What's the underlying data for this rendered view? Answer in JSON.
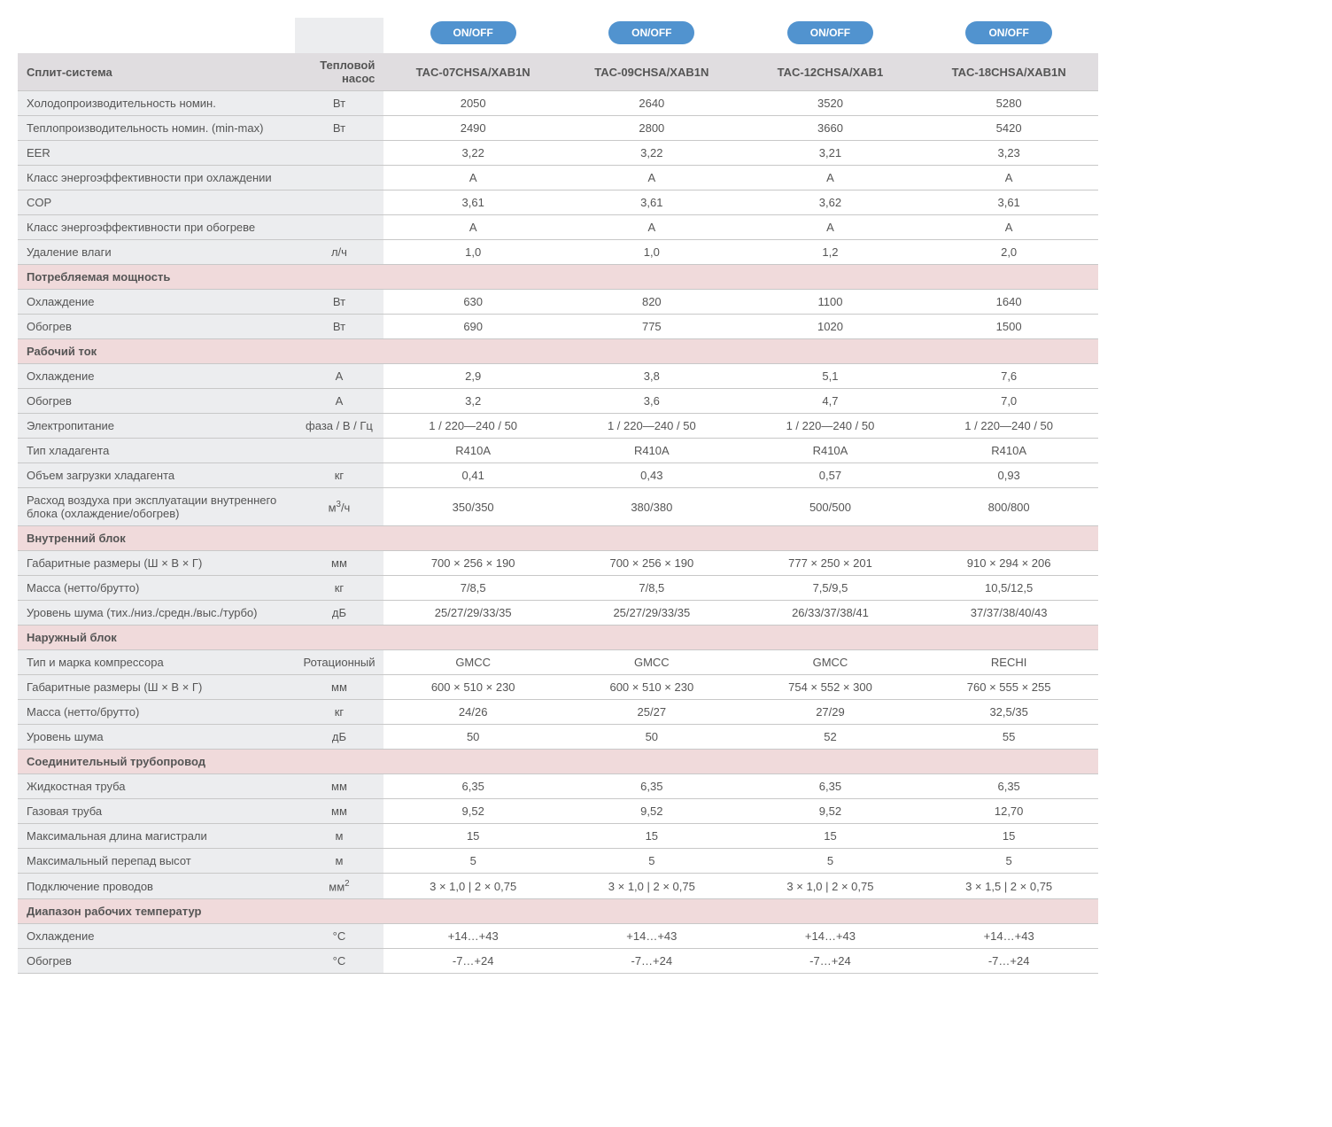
{
  "colors": {
    "pill_bg": "#5193cf",
    "pill_fg": "#ffffff",
    "header_bg": "#e0dde0",
    "label_bg": "#ecedef",
    "section_bg": "#f0dadb",
    "border": "#c8c8c8",
    "text": "#555555"
  },
  "pills": [
    "ON/OFF",
    "ON/OFF",
    "ON/OFF",
    "ON/OFF"
  ],
  "header": {
    "label": "Сплит-система",
    "unit": "Тепловой насос",
    "models": [
      "TAC-07CHSA/XAB1N",
      "TAC-09CHSA/XAB1N",
      "TAC-12CHSA/XAB1",
      "TAC-18CHSA/XAB1N"
    ]
  },
  "rows": [
    {
      "t": "data",
      "label": "Холодопроизводительность номин.",
      "unit": "Вт",
      "v": [
        "2050",
        "2640",
        "3520",
        "5280"
      ]
    },
    {
      "t": "data",
      "label": "Теплопроизводительность номин. (min-max)",
      "unit": "Вт",
      "v": [
        "2490",
        "2800",
        "3660",
        "5420"
      ]
    },
    {
      "t": "data",
      "label": "EER",
      "unit": "",
      "v": [
        "3,22",
        "3,22",
        "3,21",
        "3,23"
      ]
    },
    {
      "t": "data",
      "label": "Класс энергоэффективности при охлаждении",
      "unit": "",
      "v": [
        "A",
        "A",
        "A",
        "A"
      ]
    },
    {
      "t": "data",
      "label": "COP",
      "unit": "",
      "v": [
        "3,61",
        "3,61",
        "3,62",
        "3,61"
      ]
    },
    {
      "t": "data",
      "label": "Класс энергоэффективности при обогреве",
      "unit": "",
      "v": [
        "A",
        "A",
        "A",
        "A"
      ]
    },
    {
      "t": "data",
      "label": "Удаление влаги",
      "unit": "л/ч",
      "v": [
        "1,0",
        "1,0",
        "1,2",
        "2,0"
      ]
    },
    {
      "t": "section",
      "label": "Потребляемая мощность"
    },
    {
      "t": "data",
      "label": "Охлаждение",
      "unit": "Вт",
      "v": [
        "630",
        "820",
        "1100",
        "1640"
      ]
    },
    {
      "t": "data",
      "label": "Обогрев",
      "unit": "Вт",
      "v": [
        "690",
        "775",
        "1020",
        "1500"
      ]
    },
    {
      "t": "section",
      "label": "Рабочий ток"
    },
    {
      "t": "data",
      "label": "Охлаждение",
      "unit": "A",
      "v": [
        "2,9",
        "3,8",
        "5,1",
        "7,6"
      ]
    },
    {
      "t": "data",
      "label": "Обогрев",
      "unit": "A",
      "v": [
        "3,2",
        "3,6",
        "4,7",
        "7,0"
      ]
    },
    {
      "t": "data",
      "label": "Электропитание",
      "unit": "фаза / В / Гц",
      "v": [
        "1 / 220—240 / 50",
        "1 / 220—240 / 50",
        "1 / 220—240 / 50",
        "1 / 220—240 / 50"
      ]
    },
    {
      "t": "data",
      "label": "Тип хладагента",
      "unit": "",
      "v": [
        "R410A",
        "R410A",
        "R410A",
        "R410A"
      ]
    },
    {
      "t": "data",
      "label": "Объем загрузки хладагента",
      "unit": "кг",
      "v": [
        "0,41",
        "0,43",
        "0,57",
        "0,93"
      ]
    },
    {
      "t": "data",
      "label": "Расход воздуха при эксплуатации внутреннего блока (охлаждение/обогрев)",
      "unit_html": "м<sup>3</sup>/ч",
      "v": [
        "350/350",
        "380/380",
        "500/500",
        "800/800"
      ]
    },
    {
      "t": "section",
      "label": "Внутренний блок"
    },
    {
      "t": "data",
      "label": "Габаритные размеры (Ш × В × Г)",
      "unit": "мм",
      "v": [
        "700 × 256 × 190",
        "700 × 256 × 190",
        "777 × 250 × 201",
        "910 × 294 × 206"
      ]
    },
    {
      "t": "data",
      "label": "Масса (нетто/брутто)",
      "unit": "кг",
      "v": [
        "7/8,5",
        "7/8,5",
        "7,5/9,5",
        "10,5/12,5"
      ]
    },
    {
      "t": "data",
      "label": "Уровень шума (тих./низ./средн./выс./турбо)",
      "unit": "дБ",
      "v": [
        "25/27/29/33/35",
        "25/27/29/33/35",
        "26/33/37/38/41",
        "37/37/38/40/43"
      ]
    },
    {
      "t": "section",
      "label": "Наружный блок"
    },
    {
      "t": "data",
      "label": "Тип и марка компрессора",
      "unit": "Ротационный",
      "v": [
        "GMCC",
        "GMCC",
        "GMCC",
        "RECHI"
      ]
    },
    {
      "t": "data",
      "label": "Габаритные размеры (Ш × В × Г)",
      "unit": "мм",
      "v": [
        "600 × 510 × 230",
        "600 × 510 × 230",
        "754 × 552 × 300",
        "760 × 555 × 255"
      ]
    },
    {
      "t": "data",
      "label": "Масса (нетто/брутто)",
      "unit": "кг",
      "v": [
        "24/26",
        "25/27",
        "27/29",
        "32,5/35"
      ]
    },
    {
      "t": "data",
      "label": "Уровень шума",
      "unit": "дБ",
      "v": [
        "50",
        "50",
        "52",
        "55"
      ]
    },
    {
      "t": "section",
      "label": "Cоединительный трубопровод"
    },
    {
      "t": "data",
      "label": "Жидкостная труба",
      "unit": "мм",
      "v": [
        "6,35",
        "6,35",
        "6,35",
        "6,35"
      ]
    },
    {
      "t": "data",
      "label": "Газовая труба",
      "unit": "мм",
      "v": [
        "9,52",
        "9,52",
        "9,52",
        "12,70"
      ]
    },
    {
      "t": "data",
      "label": "Максимальная длина магистрали",
      "unit": "м",
      "v": [
        "15",
        "15",
        "15",
        "15"
      ]
    },
    {
      "t": "data",
      "label": "Максимальный перепад высот",
      "unit": "м",
      "v": [
        "5",
        "5",
        "5",
        "5"
      ]
    },
    {
      "t": "data",
      "label": "Подключение проводов",
      "unit_html": "мм<sup>2</sup>",
      "v": [
        "3 × 1,0 | 2 × 0,75",
        "3 × 1,0 | 2 × 0,75",
        "3 × 1,0 | 2 × 0,75",
        "3 × 1,5 | 2 × 0,75"
      ]
    },
    {
      "t": "section",
      "label": "Диапазон рабочих температур"
    },
    {
      "t": "data",
      "label": "Охлаждение",
      "unit": "°С",
      "v": [
        "+14…+43",
        "+14…+43",
        "+14…+43",
        "+14…+43"
      ]
    },
    {
      "t": "data",
      "label": "Обогрев",
      "unit": "°С",
      "v": [
        "-7…+24",
        "-7…+24",
        "-7…+24",
        "-7…+24"
      ]
    }
  ]
}
